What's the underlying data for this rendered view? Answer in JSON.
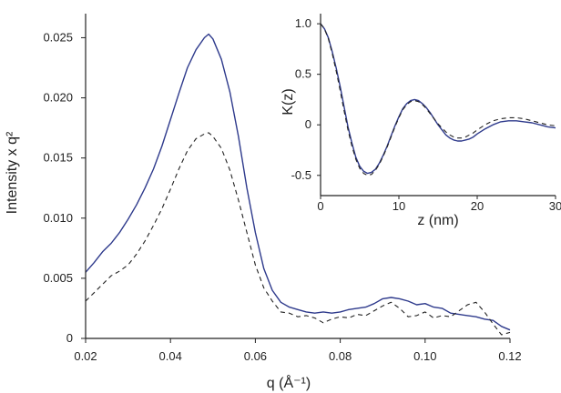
{
  "chart_data": [
    {
      "id": "main",
      "type": "line",
      "title": "",
      "xlabel": "q (Å⁻¹)",
      "ylabel": "Intensity x q²",
      "xlim": [
        0.02,
        0.12
      ],
      "ylim": [
        0,
        0.027
      ],
      "xticks": [
        "0.02",
        "0.04",
        "0.06",
        "0.08",
        "0.10",
        "0.12"
      ],
      "yticks": [
        "0",
        "0.005",
        "0.010",
        "0.015",
        "0.020",
        "0.025"
      ],
      "grid": false,
      "series": [
        {
          "name": "solid",
          "style": "solid",
          "color": "#2e3a8c",
          "x": [
            0.02,
            0.022,
            0.024,
            0.026,
            0.028,
            0.03,
            0.032,
            0.034,
            0.036,
            0.038,
            0.04,
            0.042,
            0.044,
            0.046,
            0.048,
            0.049,
            0.05,
            0.052,
            0.054,
            0.056,
            0.058,
            0.06,
            0.062,
            0.064,
            0.066,
            0.068,
            0.07,
            0.072,
            0.074,
            0.076,
            0.078,
            0.08,
            0.082,
            0.084,
            0.086,
            0.088,
            0.09,
            0.092,
            0.094,
            0.096,
            0.098,
            0.1,
            0.102,
            0.104,
            0.106,
            0.108,
            0.11,
            0.112,
            0.114,
            0.116,
            0.118,
            0.12
          ],
          "y": [
            0.0055,
            0.0063,
            0.0072,
            0.0079,
            0.0088,
            0.0099,
            0.0111,
            0.0125,
            0.0141,
            0.016,
            0.0182,
            0.0204,
            0.0225,
            0.024,
            0.025,
            0.0253,
            0.0249,
            0.0232,
            0.0205,
            0.0168,
            0.0125,
            0.0088,
            0.0058,
            0.004,
            0.003,
            0.0026,
            0.0024,
            0.0022,
            0.0021,
            0.0022,
            0.0021,
            0.0022,
            0.0024,
            0.0025,
            0.0026,
            0.0029,
            0.0033,
            0.0034,
            0.0033,
            0.0031,
            0.0028,
            0.0029,
            0.0026,
            0.0025,
            0.0021,
            0.002,
            0.0019,
            0.0018,
            0.0016,
            0.0015,
            0.001,
            0.0007
          ]
        },
        {
          "name": "dashed",
          "style": "dashed",
          "color": "#222222",
          "x": [
            0.02,
            0.022,
            0.024,
            0.026,
            0.028,
            0.03,
            0.032,
            0.034,
            0.036,
            0.038,
            0.04,
            0.042,
            0.044,
            0.046,
            0.048,
            0.049,
            0.05,
            0.052,
            0.054,
            0.056,
            0.058,
            0.06,
            0.062,
            0.064,
            0.066,
            0.068,
            0.07,
            0.072,
            0.074,
            0.076,
            0.078,
            0.08,
            0.082,
            0.084,
            0.086,
            0.088,
            0.09,
            0.092,
            0.094,
            0.096,
            0.098,
            0.1,
            0.102,
            0.104,
            0.106,
            0.108,
            0.11,
            0.112,
            0.114,
            0.116,
            0.118,
            0.12
          ],
          "y": [
            0.0031,
            0.0038,
            0.0045,
            0.0052,
            0.0056,
            0.0061,
            0.007,
            0.0081,
            0.0094,
            0.0108,
            0.0124,
            0.0141,
            0.0156,
            0.0166,
            0.017,
            0.0171,
            0.0168,
            0.0158,
            0.014,
            0.0115,
            0.0088,
            0.0061,
            0.0042,
            0.0031,
            0.0022,
            0.0021,
            0.0018,
            0.0019,
            0.0017,
            0.0013,
            0.0016,
            0.0018,
            0.0017,
            0.002,
            0.0019,
            0.0023,
            0.0027,
            0.003,
            0.0025,
            0.0018,
            0.0019,
            0.0022,
            0.0017,
            0.0019,
            0.0018,
            0.0023,
            0.0028,
            0.003,
            0.0022,
            0.0012,
            0.0003,
            0.0005
          ]
        }
      ]
    },
    {
      "id": "inset",
      "type": "line",
      "title": "",
      "xlabel": "z (nm)",
      "ylabel": "K(z)",
      "xlim": [
        0,
        30
      ],
      "ylim": [
        -0.7,
        1.1
      ],
      "xticks": [
        "0",
        "10",
        "20",
        "30"
      ],
      "yticks": [
        "-0.5",
        "0",
        "0.5",
        "1.0"
      ],
      "grid": false,
      "series": [
        {
          "name": "solid",
          "style": "solid",
          "color": "#2e3a8c",
          "x": [
            0,
            0.5,
            1,
            1.5,
            2,
            2.5,
            3,
            3.5,
            4,
            4.5,
            5,
            5.5,
            6,
            6.5,
            7,
            7.5,
            8,
            8.5,
            9,
            9.5,
            10,
            10.5,
            11,
            11.5,
            12,
            12.5,
            13,
            13.5,
            14,
            14.5,
            15,
            15.5,
            16,
            16.5,
            17,
            17.5,
            18,
            18.5,
            19,
            19.5,
            20,
            21,
            22,
            23,
            24,
            25,
            26,
            27,
            28,
            29,
            30
          ],
          "y": [
            1.0,
            0.95,
            0.86,
            0.72,
            0.56,
            0.38,
            0.18,
            -0.02,
            -0.18,
            -0.32,
            -0.41,
            -0.46,
            -0.48,
            -0.47,
            -0.44,
            -0.38,
            -0.3,
            -0.21,
            -0.11,
            -0.01,
            0.08,
            0.16,
            0.21,
            0.24,
            0.25,
            0.24,
            0.21,
            0.17,
            0.12,
            0.06,
            0.0,
            -0.05,
            -0.1,
            -0.13,
            -0.15,
            -0.16,
            -0.16,
            -0.15,
            -0.14,
            -0.12,
            -0.09,
            -0.04,
            0.0,
            0.03,
            0.04,
            0.04,
            0.03,
            0.02,
            0.0,
            -0.02,
            -0.03
          ]
        },
        {
          "name": "dashed",
          "style": "dashed",
          "color": "#222222",
          "x": [
            0,
            0.5,
            1,
            1.5,
            2,
            2.5,
            3,
            3.5,
            4,
            4.5,
            5,
            5.5,
            6,
            6.5,
            7,
            7.5,
            8,
            8.5,
            9,
            9.5,
            10,
            10.5,
            11,
            11.5,
            12,
            12.5,
            13,
            13.5,
            14,
            14.5,
            15,
            15.5,
            16,
            16.5,
            17,
            17.5,
            18,
            18.5,
            19,
            19.5,
            20,
            21,
            22,
            23,
            24,
            25,
            26,
            27,
            28,
            29,
            30
          ],
          "y": [
            1.0,
            0.95,
            0.85,
            0.7,
            0.53,
            0.34,
            0.14,
            -0.05,
            -0.21,
            -0.34,
            -0.43,
            -0.48,
            -0.5,
            -0.49,
            -0.45,
            -0.39,
            -0.31,
            -0.22,
            -0.12,
            -0.02,
            0.07,
            0.15,
            0.2,
            0.23,
            0.24,
            0.23,
            0.2,
            0.16,
            0.11,
            0.06,
            0.01,
            -0.03,
            -0.07,
            -0.1,
            -0.12,
            -0.13,
            -0.13,
            -0.12,
            -0.1,
            -0.08,
            -0.05,
            0.0,
            0.04,
            0.06,
            0.07,
            0.07,
            0.06,
            0.04,
            0.02,
            0.0,
            -0.01
          ]
        }
      ]
    }
  ]
}
